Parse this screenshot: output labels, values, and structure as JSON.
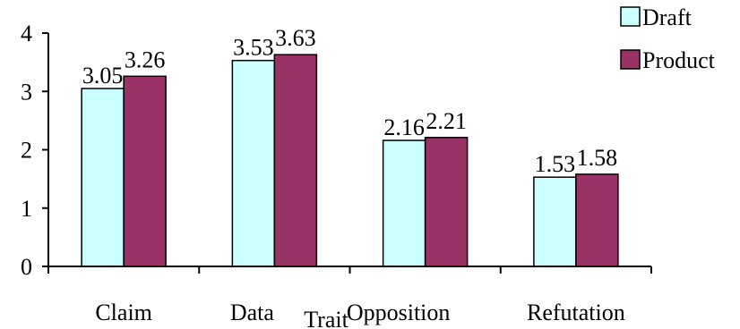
{
  "chart_data": {
    "type": "bar",
    "title": "",
    "xlabel": "Trait",
    "ylabel": "",
    "categories": [
      "Claim",
      "Data",
      "Opposition",
      "Refutation"
    ],
    "series": [
      {
        "name": "Draft",
        "values": [
          3.05,
          3.53,
          2.16,
          1.53
        ],
        "labels": [
          "3.05",
          "3.53",
          "2.16",
          "1.53"
        ]
      },
      {
        "name": "Product",
        "values": [
          3.26,
          3.63,
          2.21,
          1.58
        ],
        "labels": [
          "3.26",
          "3.63",
          "2.21",
          "1.58"
        ]
      }
    ],
    "ylim": [
      0,
      4
    ],
    "yticks": [
      0,
      1,
      2,
      3,
      4
    ],
    "ytick_labels": [
      "0",
      "1",
      "2",
      "3",
      "4"
    ],
    "grid": false,
    "legend_position": "top-right"
  },
  "colors": {
    "Draft": "#ccffff",
    "Product": "#993366",
    "outline": "#000000"
  }
}
